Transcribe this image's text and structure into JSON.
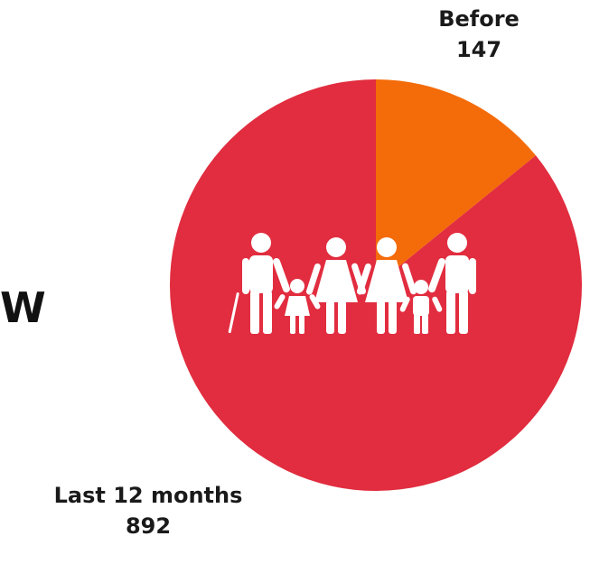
{
  "side_text": "W",
  "chart_data": {
    "type": "pie",
    "slices": [
      {
        "label": "Before",
        "value": 147,
        "color": "#F46B0A"
      },
      {
        "label": "Last 12 months",
        "value": 892,
        "color": "#E12D3F"
      }
    ],
    "start_angle_deg": 0,
    "direction": "clockwise",
    "center_icon": "family-icon",
    "center_icon_color": "#ffffff"
  }
}
